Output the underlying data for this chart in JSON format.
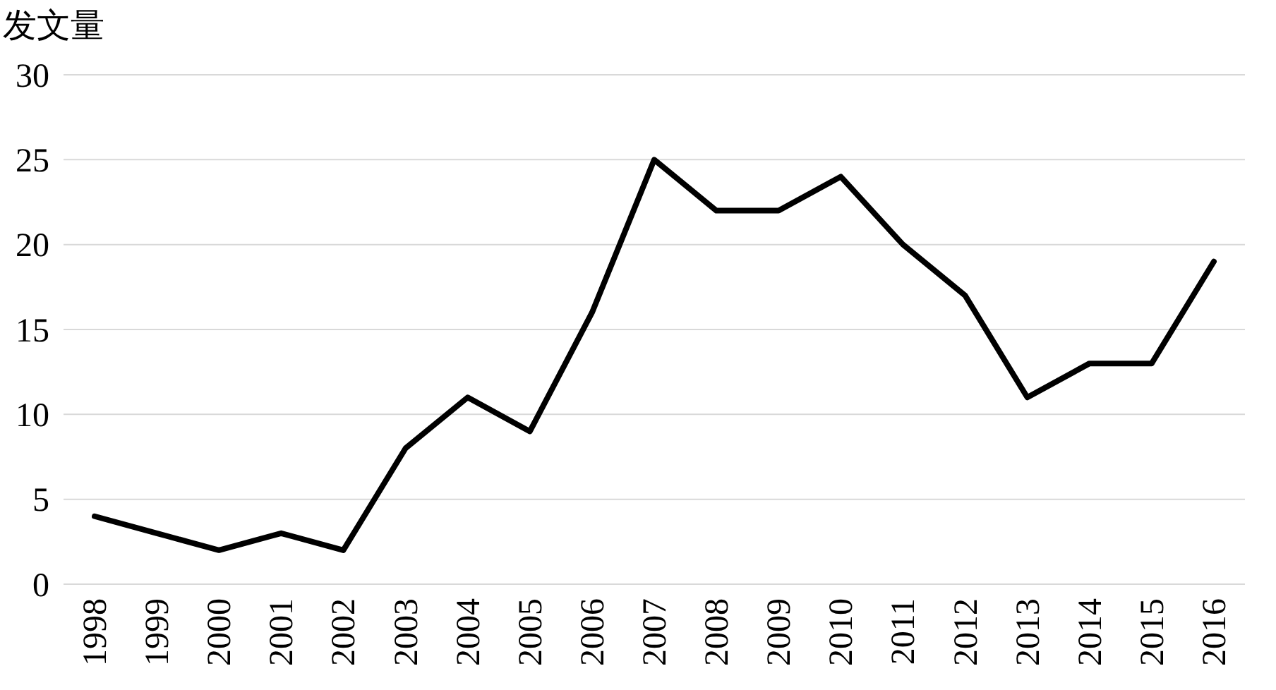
{
  "chart_data": {
    "type": "line",
    "ylabel": "发文量",
    "categories": [
      "1998",
      "1999",
      "2000",
      "2001",
      "2002",
      "2003",
      "2004",
      "2005",
      "2006",
      "2007",
      "2008",
      "2009",
      "2010",
      "2011",
      "2012",
      "2013",
      "2014",
      "2015",
      "2016"
    ],
    "series": [
      {
        "color": "#000000",
        "values": [
          4,
          3,
          2,
          3,
          2,
          8,
          11,
          9,
          16,
          25,
          22,
          22,
          24,
          20,
          17,
          11,
          13,
          13,
          19
        ]
      }
    ],
    "ylim": [
      0,
      30
    ],
    "yticks": [
      0,
      5,
      10,
      15,
      20,
      25,
      30
    ],
    "grid": "y",
    "marker": "none",
    "line_style": "solid"
  }
}
